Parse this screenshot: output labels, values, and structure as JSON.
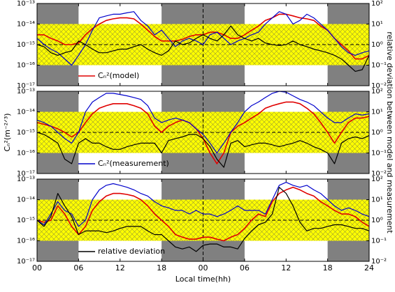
{
  "chart_data": [
    {
      "type": "line",
      "log": true,
      "xlim": [
        0,
        48
      ],
      "ylim": [
        1e-17,
        1e-13
      ],
      "y2lim": [
        0.01,
        100
      ],
      "xticks": [
        0,
        6,
        12,
        18,
        24,
        30,
        36,
        42,
        48
      ],
      "yticks": [
        {
          "value": 1e-17,
          "label": "10⁻¹⁷"
        },
        {
          "value": 1e-16,
          "label": "10⁻¹⁶"
        },
        {
          "value": 1e-15,
          "label": "10⁻¹⁵"
        },
        {
          "value": 1e-14,
          "label": "10⁻¹⁴"
        },
        {
          "value": 1e-13,
          "label": "10⁻¹³"
        }
      ],
      "y2ticks": [
        {
          "value": 0.01,
          "label": "10⁻²"
        },
        {
          "value": 0.1,
          "label": "10⁻¹"
        },
        {
          "value": 1,
          "label": "10⁰"
        },
        {
          "value": 10,
          "label": "10¹"
        },
        {
          "value": 100,
          "label": "10²"
        }
      ],
      "shade": [
        [
          0,
          6
        ],
        [
          18,
          30
        ],
        [
          42,
          48
        ]
      ],
      "shade_color": "#808080",
      "band": [
        0.1,
        10
      ],
      "band_color": "#ffff00",
      "hline": 1,
      "vline": 24,
      "legend": "lower left",
      "x": [
        0,
        1,
        2,
        3,
        4,
        5,
        6,
        7,
        8,
        9,
        10,
        11,
        12,
        13,
        14,
        15,
        16,
        17,
        18,
        19,
        20,
        21,
        22,
        23,
        24,
        25,
        26,
        27,
        28,
        29,
        30,
        31,
        32,
        33,
        34,
        35,
        36,
        37,
        38,
        39,
        40,
        41,
        42,
        43,
        44,
        45,
        46,
        47,
        48
      ],
      "series": [
        {
          "name": "Cₙ²(model)",
          "color": "#e00000",
          "values": [
            3e-15,
            3e-15,
            2e-15,
            1.5e-15,
            1e-15,
            1e-15,
            1.2e-15,
            3e-15,
            6e-15,
            1e-14,
            1.5e-14,
            1.8e-14,
            2e-14,
            2e-14,
            1.8e-14,
            1e-14,
            5e-15,
            2.5e-15,
            1.5e-15,
            1.5e-15,
            1.5e-15,
            1.8e-15,
            2.5e-15,
            3e-15,
            3e-15,
            4e-15,
            4e-15,
            3e-15,
            2e-15,
            2e-15,
            3e-15,
            5e-15,
            8e-15,
            1.5e-14,
            2e-14,
            3e-14,
            3e-14,
            2.5e-14,
            2e-14,
            1.8e-14,
            1.5e-14,
            8e-15,
            5e-15,
            2e-15,
            1e-15,
            5e-16,
            2e-16,
            2e-16,
            3e-16
          ]
        },
        {
          "color": "#0000cc",
          "values": [
            2e-15,
            1e-15,
            6e-16,
            4e-16,
            2e-16,
            1e-16,
            3e-16,
            1e-15,
            5e-15,
            2e-14,
            2.5e-14,
            3e-14,
            3e-14,
            3.5e-14,
            4e-14,
            1.5e-14,
            8e-15,
            3e-15,
            5e-15,
            2e-15,
            8e-16,
            1.5e-15,
            2e-15,
            1.5e-15,
            1e-15,
            3e-15,
            4e-15,
            2e-15,
            1e-15,
            1.5e-15,
            2e-15,
            3e-15,
            4e-15,
            1e-14,
            2e-14,
            4e-14,
            3e-14,
            1e-14,
            1.5e-14,
            3e-14,
            2e-14,
            1e-14,
            5e-15,
            2e-15,
            8e-16,
            4e-16,
            3e-16,
            4e-16,
            5e-16
          ]
        },
        {
          "color": "#000000",
          "axis": "y2",
          "values": [
            1,
            0.8,
            0.4,
            0.3,
            0.4,
            0.5,
            1.5,
            1,
            0.6,
            0.4,
            0.4,
            0.5,
            0.6,
            0.6,
            0.8,
            1,
            0.6,
            0.4,
            0.3,
            0.5,
            1.5,
            1,
            1.2,
            2,
            3,
            2,
            1.5,
            3,
            8,
            3,
            2,
            1.5,
            2,
            1.2,
            1,
            0.9,
            1,
            1.5,
            1,
            0.8,
            0.6,
            0.5,
            0.4,
            0.3,
            0.2,
            0.1,
            0.05,
            0.06,
            0.3
          ]
        }
      ]
    },
    {
      "type": "line",
      "log": true,
      "xlim": [
        0,
        48
      ],
      "ylim": [
        1e-17,
        1e-13
      ],
      "y2lim": [
        0.01,
        100
      ],
      "ylabel": "Cₙ²(m⁻²ᐟ³)",
      "y2label": "relative deviation between model and measurement",
      "xticks": [
        0,
        6,
        12,
        18,
        24,
        30,
        36,
        42,
        48
      ],
      "yticks": [
        {
          "value": 1e-17,
          "label": "10⁻¹⁷"
        },
        {
          "value": 1e-16,
          "label": "10⁻¹⁶"
        },
        {
          "value": 1e-15,
          "label": "10⁻¹⁵"
        },
        {
          "value": 1e-14,
          "label": "10⁻¹⁴"
        },
        {
          "value": 1e-13,
          "label": "10⁻¹³"
        }
      ],
      "y2ticks": [
        {
          "value": 0.01,
          "label": "10⁻²"
        },
        {
          "value": 0.1,
          "label": "10⁻¹"
        },
        {
          "value": 1,
          "label": "10⁰"
        },
        {
          "value": 10,
          "label": "10¹"
        },
        {
          "value": 100,
          "label": "10²"
        }
      ],
      "shade": [
        [
          0,
          6
        ],
        [
          18,
          30
        ],
        [
          42,
          48
        ]
      ],
      "shade_color": "#808080",
      "band": [
        0.1,
        10
      ],
      "band_color": "#ffff00",
      "hline": 1,
      "vline": 24,
      "legend": "lower left",
      "x": [
        0,
        1,
        2,
        3,
        4,
        5,
        6,
        7,
        8,
        9,
        10,
        11,
        12,
        13,
        14,
        15,
        16,
        17,
        18,
        19,
        20,
        21,
        22,
        23,
        24,
        25,
        26,
        27,
        28,
        29,
        30,
        31,
        32,
        33,
        34,
        35,
        36,
        37,
        38,
        39,
        40,
        41,
        42,
        43,
        44,
        45,
        46,
        47,
        48
      ],
      "series": [
        {
          "color": "#e00000",
          "values": [
            3e-15,
            2.5e-15,
            2e-15,
            1.5e-15,
            1e-15,
            6e-16,
            1e-15,
            3e-15,
            8e-15,
            1.5e-14,
            2e-14,
            2.5e-14,
            2.5e-14,
            2.5e-14,
            2e-14,
            1.5e-14,
            8e-15,
            2e-15,
            1e-15,
            2e-15,
            3e-15,
            4e-15,
            3e-15,
            1.5e-15,
            5e-16,
            1e-16,
            3e-17,
            1e-16,
            1e-15,
            2e-15,
            3e-15,
            5e-15,
            8e-15,
            1.5e-14,
            2e-14,
            2.5e-14,
            3e-14,
            3e-14,
            2.5e-14,
            1.5e-14,
            8e-15,
            3e-15,
            1e-15,
            3e-16,
            1e-15,
            3e-15,
            5e-15,
            5e-15,
            6e-15
          ]
        },
        {
          "name": "Cₙ²(measurement)",
          "color": "#0000cc",
          "values": [
            4e-15,
            3e-15,
            2e-15,
            1e-15,
            5e-16,
            3e-16,
            1e-15,
            1e-14,
            3e-14,
            5e-14,
            8e-14,
            8e-14,
            7e-14,
            6e-14,
            5e-14,
            4e-14,
            2e-14,
            5e-15,
            3e-15,
            4e-15,
            5e-15,
            4e-15,
            3e-15,
            1.5e-15,
            8e-16,
            3e-16,
            1e-16,
            3e-16,
            1e-15,
            3e-15,
            1e-14,
            2e-14,
            3e-14,
            5e-14,
            8e-14,
            1e-13,
            9e-14,
            6e-14,
            4e-14,
            3e-14,
            2e-14,
            1e-14,
            5e-15,
            3e-15,
            3e-15,
            5e-15,
            8e-15,
            7e-15,
            8e-15
          ]
        },
        {
          "color": "#000000",
          "axis": "y2",
          "values": [
            1,
            0.8,
            0.5,
            0.3,
            0.05,
            0.03,
            0.3,
            0.5,
            0.3,
            0.3,
            0.2,
            0.15,
            0.15,
            0.2,
            0.25,
            0.3,
            0.3,
            0.3,
            0.1,
            0.4,
            0.5,
            0.6,
            0.8,
            0.8,
            0.5,
            0.2,
            0.05,
            0.02,
            0.3,
            0.4,
            0.2,
            0.25,
            0.3,
            0.3,
            0.25,
            0.2,
            0.25,
            0.3,
            0.4,
            0.3,
            0.2,
            0.15,
            0.1,
            0.03,
            0.3,
            0.5,
            0.6,
            0.5,
            0.7
          ]
        }
      ]
    },
    {
      "type": "line",
      "log": true,
      "xlim": [
        0,
        48
      ],
      "ylim": [
        1e-17,
        1e-13
      ],
      "y2lim": [
        0.01,
        100
      ],
      "xlabel": "Local time(hh)",
      "xticks": [
        {
          "value": 0,
          "label": "00"
        },
        {
          "value": 6,
          "label": "06"
        },
        {
          "value": 12,
          "label": "12"
        },
        {
          "value": 18,
          "label": "18"
        },
        {
          "value": 24,
          "label": "00"
        },
        {
          "value": 30,
          "label": "06"
        },
        {
          "value": 36,
          "label": "12"
        },
        {
          "value": 42,
          "label": "18"
        },
        {
          "value": 48,
          "label": "24"
        }
      ],
      "yticks": [
        {
          "value": 1e-17,
          "label": "10⁻¹⁷"
        },
        {
          "value": 1e-16,
          "label": "10⁻¹⁶"
        },
        {
          "value": 1e-15,
          "label": "10⁻¹⁵"
        },
        {
          "value": 1e-14,
          "label": "10⁻¹⁴"
        },
        {
          "value": 1e-13,
          "label": "10⁻¹³"
        }
      ],
      "y2ticks": [
        {
          "value": 0.01,
          "label": "10⁻²"
        },
        {
          "value": 0.1,
          "label": "10⁻¹"
        },
        {
          "value": 1,
          "label": "10⁰"
        },
        {
          "value": 10,
          "label": "10¹"
        },
        {
          "value": 100,
          "label": "10²"
        }
      ],
      "shade": [
        [
          0,
          6
        ],
        [
          18,
          30
        ],
        [
          42,
          48
        ]
      ],
      "shade_color": "#808080",
      "band": [
        0.1,
        10
      ],
      "band_color": "#ffff00",
      "hline": 1,
      "vline": 24,
      "legend": "lower left",
      "x": [
        0,
        1,
        2,
        3,
        4,
        5,
        6,
        7,
        8,
        9,
        10,
        11,
        12,
        13,
        14,
        15,
        16,
        17,
        18,
        19,
        20,
        21,
        22,
        23,
        24,
        25,
        26,
        27,
        28,
        29,
        30,
        31,
        32,
        33,
        34,
        35,
        36,
        37,
        38,
        39,
        40,
        41,
        42,
        43,
        44,
        45,
        46,
        47,
        48
      ],
      "series": [
        {
          "color": "#e00000",
          "values": [
            1e-15,
            8e-16,
            1e-15,
            5e-15,
            2e-15,
            5e-16,
            2e-16,
            5e-16,
            3e-15,
            8e-15,
            1.5e-14,
            2e-14,
            2e-14,
            1.8e-14,
            1.5e-14,
            1e-14,
            5e-15,
            2e-15,
            1e-15,
            5e-16,
            2e-16,
            1.5e-16,
            1.2e-16,
            1.2e-16,
            1.5e-16,
            1.5e-16,
            1.2e-16,
            1e-16,
            1.5e-16,
            2e-16,
            4e-16,
            1e-15,
            2e-15,
            1.5e-15,
            8e-15,
            2e-14,
            3e-14,
            4e-14,
            3e-14,
            2e-14,
            1.5e-14,
            8e-15,
            5e-15,
            3e-15,
            2e-15,
            2e-15,
            1.5e-15,
            8e-16,
            5e-16
          ]
        },
        {
          "color": "#0000cc",
          "values": [
            1e-15,
            6e-16,
            2e-15,
            8e-15,
            3e-15,
            2e-15,
            5e-16,
            1e-15,
            1e-14,
            3e-14,
            5e-14,
            6e-14,
            5e-14,
            4e-14,
            3e-14,
            2e-14,
            1.5e-14,
            8e-15,
            5e-15,
            4e-15,
            3e-15,
            3e-15,
            2e-15,
            3e-15,
            2e-15,
            2e-15,
            1.5e-15,
            2e-15,
            3e-15,
            5e-15,
            3e-15,
            3e-15,
            3e-15,
            2e-15,
            1e-14,
            5e-14,
            7e-14,
            5e-14,
            4e-14,
            5e-14,
            3e-14,
            2e-14,
            1e-14,
            5e-15,
            3e-15,
            4e-15,
            3e-15,
            2e-15,
            1.5e-15
          ]
        },
        {
          "name": "relative deviation",
          "color": "#000000",
          "axis": "y2",
          "values": [
            1,
            0.5,
            1.5,
            20,
            5,
            1.5,
            0.2,
            0.3,
            0.3,
            0.3,
            0.25,
            0.3,
            0.4,
            0.5,
            0.5,
            0.5,
            0.3,
            0.2,
            0.2,
            0.1,
            0.05,
            0.04,
            0.05,
            0.03,
            0.06,
            0.07,
            0.07,
            0.05,
            0.05,
            0.04,
            0.13,
            0.3,
            0.6,
            0.8,
            2,
            40,
            20,
            5,
            0.8,
            0.3,
            0.4,
            0.4,
            0.5,
            0.6,
            0.6,
            0.5,
            0.4,
            0.4,
            0.3
          ]
        }
      ]
    }
  ]
}
